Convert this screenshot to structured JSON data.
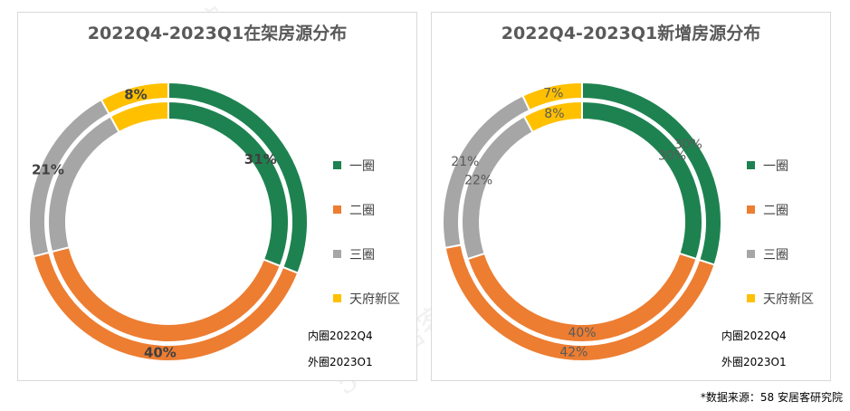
{
  "watermark": "58安居客研究院",
  "legend_note": {
    "inner": "内圈2022Q4",
    "outer": "外圈2023O1"
  },
  "source": "*数据来源：58 安居客研究院",
  "chart_data": [
    {
      "type": "donut",
      "title": "2022Q4-2023Q1在架房源分布",
      "categories": [
        "一圈",
        "二圈",
        "三圈",
        "天府新区"
      ],
      "colors": [
        "#1e8250",
        "#ed7d31",
        "#a6a6a6",
        "#ffc000"
      ],
      "series": [
        {
          "ring": "inner",
          "name": "2022Q4",
          "values": [
            31,
            40,
            21,
            8
          ]
        },
        {
          "ring": "outer",
          "name": "2023Q1",
          "values": [
            31,
            40,
            21,
            8
          ]
        }
      ],
      "labels": [
        {
          "ring": "inner",
          "index": 0,
          "text": "31%"
        },
        {
          "ring": "outer",
          "index": 1,
          "text": "40%"
        },
        {
          "ring": "outer",
          "index": 2,
          "text": "21%"
        },
        {
          "ring": "outer",
          "index": 3,
          "text": "8%"
        }
      ],
      "label_color": "#404040",
      "label_bold": true
    },
    {
      "type": "donut",
      "title": "2022Q4-2023Q1新增房源分布",
      "categories": [
        "一圈",
        "二圈",
        "三圈",
        "天府新区"
      ],
      "colors": [
        "#1e8250",
        "#ed7d31",
        "#a6a6a6",
        "#ffc000"
      ],
      "series": [
        {
          "ring": "inner",
          "name": "2022Q4",
          "values": [
            30,
            40,
            22,
            8
          ]
        },
        {
          "ring": "outer",
          "name": "2023Q1",
          "values": [
            30,
            42,
            21,
            7
          ]
        }
      ],
      "labels": [
        {
          "ring": "outer",
          "index": 0,
          "text": "30%"
        },
        {
          "ring": "inner",
          "index": 0,
          "text": "30%"
        },
        {
          "ring": "inner",
          "index": 1,
          "text": "40%"
        },
        {
          "ring": "outer",
          "index": 1,
          "text": "42%"
        },
        {
          "ring": "outer",
          "index": 2,
          "text": "21%"
        },
        {
          "ring": "inner",
          "index": 2,
          "text": "22%"
        },
        {
          "ring": "outer",
          "index": 3,
          "text": "7%"
        },
        {
          "ring": "inner",
          "index": 3,
          "text": "8%"
        }
      ],
      "label_color": "#595959",
      "label_bold": false
    }
  ]
}
